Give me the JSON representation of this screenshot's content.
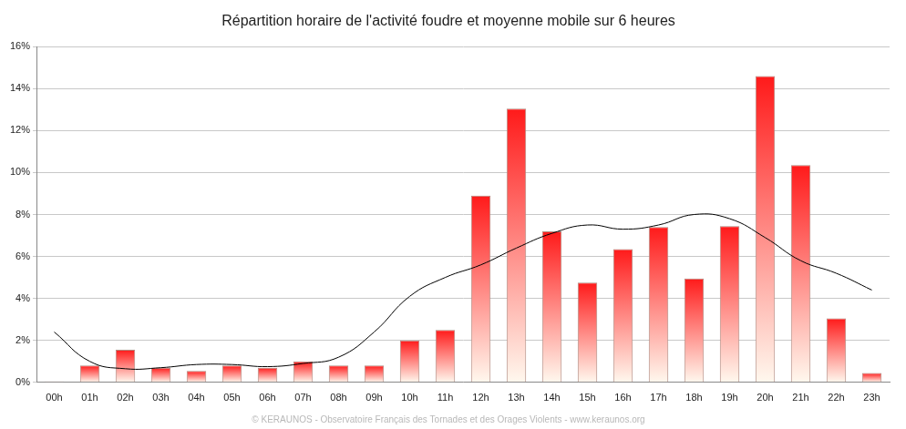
{
  "chart_data": {
    "type": "bar",
    "title": "Répartition horaire de l'activité foudre et moyenne mobile sur 6 heures",
    "annotation": "© KERAUNOS - Observatoire Français des Tornades et des Orages Violents - www.keraunos.org",
    "categories": [
      "00h",
      "01h",
      "02h",
      "03h",
      "04h",
      "05h",
      "06h",
      "07h",
      "08h",
      "09h",
      "10h",
      "11h",
      "12h",
      "13h",
      "14h",
      "15h",
      "16h",
      "17h",
      "18h",
      "19h",
      "20h",
      "21h",
      "22h",
      "23h"
    ],
    "series": [
      {
        "type": "bar",
        "color": "#ff1a1a",
        "values": [
          0.05,
          0.8,
          1.55,
          0.7,
          0.55,
          0.8,
          0.7,
          1.0,
          0.8,
          0.8,
          2.0,
          2.5,
          8.9,
          13.05,
          7.2,
          4.75,
          6.35,
          7.4,
          4.95,
          7.45,
          14.6,
          10.35,
          3.05,
          0.45
        ]
      },
      {
        "type": "line",
        "color": "#000000",
        "values": [
          2.4,
          1.0,
          0.65,
          0.7,
          0.85,
          0.85,
          0.75,
          0.9,
          1.2,
          2.4,
          4.1,
          5.0,
          5.6,
          6.4,
          7.1,
          7.5,
          7.3,
          7.5,
          8.0,
          7.8,
          6.9,
          5.8,
          5.2,
          4.4
        ]
      }
    ],
    "ylim": [
      0,
      16
    ],
    "yticks": [
      {
        "value": 0,
        "label": "0%"
      },
      {
        "value": 2,
        "label": "2%"
      },
      {
        "value": 4,
        "label": "4%"
      },
      {
        "value": 6,
        "label": "6%"
      },
      {
        "value": 8,
        "label": "8%"
      },
      {
        "value": 10,
        "label": "10%"
      },
      {
        "value": 12,
        "label": "12%"
      },
      {
        "value": 14,
        "label": "14%"
      },
      {
        "value": 16,
        "label": "16%"
      }
    ],
    "grid": true
  }
}
